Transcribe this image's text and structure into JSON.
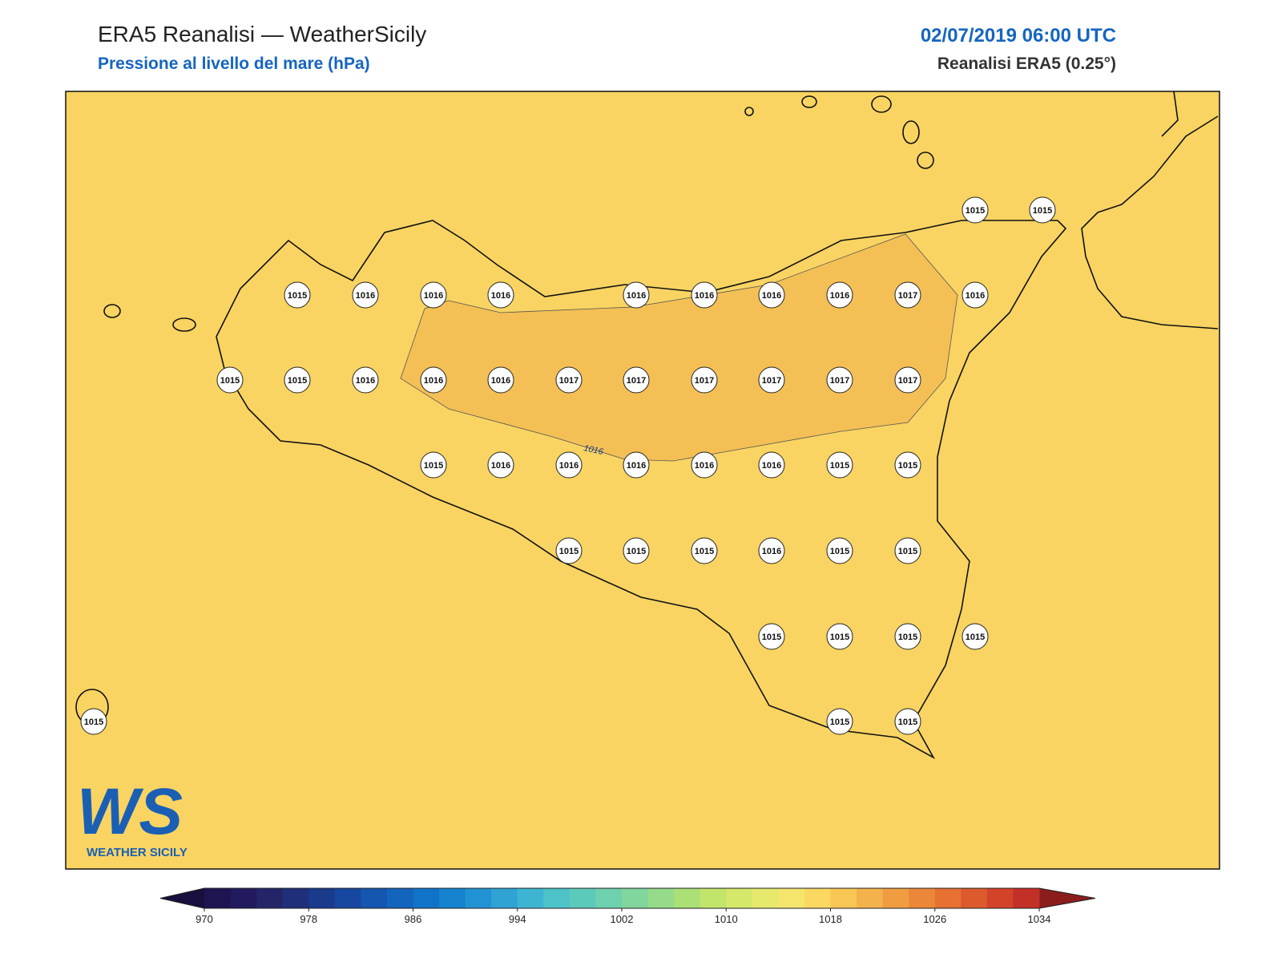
{
  "header": {
    "title": "ERA5 Reanalisi — WeatherSicily",
    "subtitle": "Pressione al livello del mare (hPa)",
    "datetime": "02/07/2019 06:00 UTC",
    "source": "Reanalisi ERA5 (0.25°)"
  },
  "contour_label": "1016",
  "stations": [
    1015,
    1015,
    1015,
    1016,
    1016,
    1016,
    1016,
    1016,
    1016,
    1016,
    1017,
    1016,
    1015,
    1015,
    1016,
    1016,
    1016,
    1017,
    1017,
    1017,
    1017,
    1017,
    1017,
    1015,
    1016,
    1016,
    1016,
    1016,
    1016,
    1015,
    1015,
    1015,
    1015,
    1015,
    1016,
    1015,
    1015,
    1015,
    1015,
    1015,
    1015,
    1015,
    1015,
    1015
  ],
  "logo": {
    "mark": "WS",
    "text": "WEATHER SICILY"
  },
  "colorbar": {
    "lim": [
      970,
      1034
    ],
    "ticks": [
      970,
      978,
      986,
      994,
      1002,
      1010,
      1018,
      1026,
      1034
    ],
    "under_color": "#1a0f3e",
    "over_color": "#8b1d1d",
    "colors": [
      "#1e1450",
      "#221a5e",
      "#232568",
      "#1f2f7a",
      "#1a3a8c",
      "#1747a0",
      "#1556b0",
      "#1364bd",
      "#1173c8",
      "#1583cf",
      "#2193d3",
      "#2fa3d4",
      "#3db5d2",
      "#4dc2c8",
      "#5ccabb",
      "#6ed1ad",
      "#80d69c",
      "#95db8a",
      "#abe077",
      "#c1e46a",
      "#d6e86a",
      "#e6e96c",
      "#f5e56d",
      "#fbd861",
      "#f8c655",
      "#f4b24c",
      "#f09d42",
      "#ec873a",
      "#e67133",
      "#dd5a2e",
      "#d2432a",
      "#c33028"
    ]
  }
}
